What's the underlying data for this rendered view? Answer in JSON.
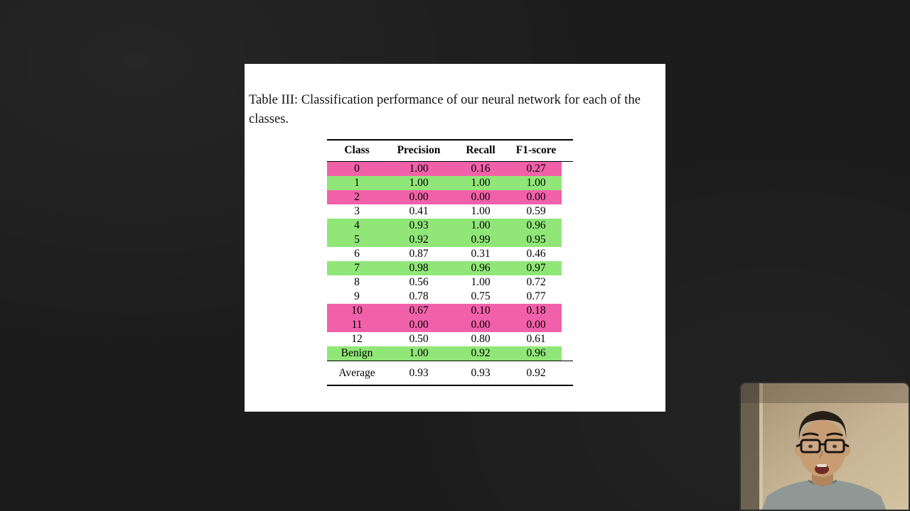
{
  "slide": {
    "caption": "Table III: Classification performance of our neural network for each of the classes.",
    "table": {
      "headers": [
        "Class",
        "Precision",
        "Recall",
        "F1-score"
      ],
      "rows": [
        {
          "class": "0",
          "precision": "1.00",
          "recall": "0.16",
          "f1": "0.27",
          "highlight": "pink"
        },
        {
          "class": "1",
          "precision": "1.00",
          "recall": "1.00",
          "f1": "1.00",
          "highlight": "green"
        },
        {
          "class": "2",
          "precision": "0.00",
          "recall": "0.00",
          "f1": "0.00",
          "highlight": "pink"
        },
        {
          "class": "3",
          "precision": "0.41",
          "recall": "1.00",
          "f1": "0.59",
          "highlight": "none"
        },
        {
          "class": "4",
          "precision": "0.93",
          "recall": "1.00",
          "f1": "0.96",
          "highlight": "green"
        },
        {
          "class": "5",
          "precision": "0.92",
          "recall": "0.99",
          "f1": "0.95",
          "highlight": "green"
        },
        {
          "class": "6",
          "precision": "0.87",
          "recall": "0.31",
          "f1": "0.46",
          "highlight": "none"
        },
        {
          "class": "7",
          "precision": "0.98",
          "recall": "0.96",
          "f1": "0.97",
          "highlight": "green"
        },
        {
          "class": "8",
          "precision": "0.56",
          "recall": "1.00",
          "f1": "0.72",
          "highlight": "none"
        },
        {
          "class": "9",
          "precision": "0.78",
          "recall": "0.75",
          "f1": "0.77",
          "highlight": "none"
        },
        {
          "class": "10",
          "precision": "0.67",
          "recall": "0.10",
          "f1": "0.18",
          "highlight": "pink"
        },
        {
          "class": "11",
          "precision": "0.00",
          "recall": "0.00",
          "f1": "0.00",
          "highlight": "pink"
        },
        {
          "class": "12",
          "precision": "0.50",
          "recall": "0.80",
          "f1": "0.61",
          "highlight": "none"
        },
        {
          "class": "Benign",
          "precision": "1.00",
          "recall": "0.92",
          "f1": "0.96",
          "highlight": "green"
        }
      ],
      "average": {
        "class": "Average",
        "precision": "0.93",
        "recall": "0.93",
        "f1": "0.92"
      }
    }
  },
  "colors": {
    "highlight_pink": "#f161a9",
    "highlight_green": "#90e778",
    "slide_background": "#ffffff",
    "page_background": "#1c1c1c"
  }
}
